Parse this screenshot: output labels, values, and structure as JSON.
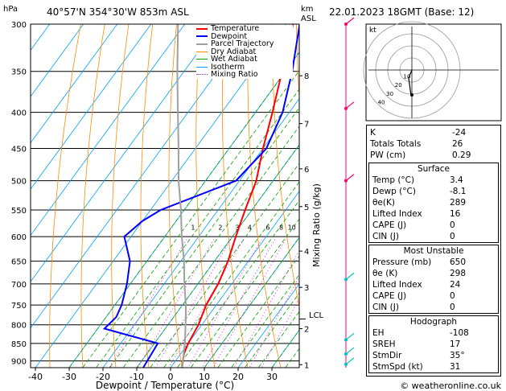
{
  "header": {
    "hpa_unit": "hPa",
    "location": "40°57'N  354°30'W  853m  ASL",
    "km_unit": "km",
    "asl_unit": "ASL",
    "datetime": "22.01.2023  18GMT  (Base: 12)"
  },
  "legend": [
    "Temperature",
    "Dewpoint",
    "Parcel Trajectory",
    "Dry Adiabat",
    "Wet Adiabat",
    "Isotherm",
    "Mixing Ratio"
  ],
  "colors": {
    "temperature": "#ff0000",
    "dewpoint": "#0000ff",
    "parcel": "#a0a0a0",
    "dry_adiabat": "#ff8c00",
    "wet_adiabat": "#00a000",
    "isotherm": "#00a0ff",
    "mixing_ratio": "#ff00ff",
    "wind": "#ff0066",
    "wind_low": "#00c0c0"
  },
  "chart_data": {
    "type": "line",
    "title": "",
    "xlabel": "Dewpoint / Temperature (°C)",
    "ylabel": "hPa",
    "y2label": "Mixing Ratio (g/kg)",
    "x_ticks": [
      "-40",
      "-30",
      "-20",
      "-10",
      "0",
      "10",
      "20",
      "30"
    ],
    "p_levels": [
      "300",
      "350",
      "400",
      "450",
      "500",
      "550",
      "600",
      "650",
      "700",
      "750",
      "800",
      "850",
      "900"
    ],
    "km_ticks": [
      "1",
      "2",
      "3",
      "4",
      "5",
      "6",
      "7",
      "8"
    ],
    "km_pressures": [
      911,
      810,
      708,
      629,
      544,
      481,
      415,
      355
    ],
    "lcl_label": "LCL",
    "lcl_pressure": 785,
    "mixing_ratio_labels": [
      "1",
      "2",
      "3",
      "4",
      "6",
      "8",
      "10",
      "15",
      "20",
      "25"
    ],
    "mixing_ratio_label_pressure": 590,
    "series": [
      {
        "name": "Temperature",
        "points": [
          [
            3.4,
            920
          ],
          [
            1,
            880
          ],
          [
            0,
            850
          ],
          [
            -1,
            800
          ],
          [
            -3,
            750
          ],
          [
            -4,
            700
          ],
          [
            -6,
            650
          ],
          [
            -9,
            600
          ],
          [
            -12,
            550
          ],
          [
            -15,
            500
          ],
          [
            -20,
            450
          ],
          [
            -25,
            400
          ],
          [
            -31,
            350
          ],
          [
            -38,
            300
          ]
        ]
      },
      {
        "name": "Dewpoint",
        "points": [
          [
            -8.1,
            920
          ],
          [
            -9,
            850
          ],
          [
            -28,
            810
          ],
          [
            -27,
            780
          ],
          [
            -28,
            750
          ],
          [
            -31,
            700
          ],
          [
            -35,
            650
          ],
          [
            -42,
            600
          ],
          [
            -40,
            570
          ],
          [
            -37,
            550
          ],
          [
            -21,
            500
          ],
          [
            -19,
            450
          ],
          [
            -22,
            400
          ],
          [
            -28,
            350
          ],
          [
            -36,
            300
          ]
        ]
      },
      {
        "name": "Parcel Trajectory",
        "points": [
          [
            3.4,
            920
          ],
          [
            -1,
            850
          ],
          [
            -6,
            785
          ],
          [
            -9,
            750
          ],
          [
            -14,
            700
          ],
          [
            -19,
            650
          ],
          [
            -25,
            600
          ],
          [
            -31,
            550
          ],
          [
            -38,
            500
          ],
          [
            -45,
            450
          ],
          [
            -53,
            400
          ],
          [
            -62,
            350
          ],
          [
            -72,
            300
          ]
        ]
      }
    ]
  },
  "hodograph": {
    "unit": "kt",
    "ring_labels": [
      "10",
      "20",
      "30",
      "40"
    ]
  },
  "indices": {
    "k_label": "K",
    "k": "-24",
    "tt_label": "Totals Totals",
    "tt": "26",
    "pw_label": "PW (cm)",
    "pw": "0.29",
    "surface": {
      "title": "Surface",
      "temp_label": "Temp (°C)",
      "temp": "3.4",
      "dewp_label": "Dewp (°C)",
      "dewp": "-8.1",
      "theta_label": "θe(K)",
      "theta": "289",
      "li_label": "Lifted Index",
      "li": "16",
      "cape_label": "CAPE (J)",
      "cape": "0",
      "cin_label": "CIN (J)",
      "cin": "0"
    },
    "most_unstable": {
      "title": "Most Unstable",
      "pressure_label": "Pressure (mb)",
      "pressure": "650",
      "theta_label": "θe (K)",
      "theta": "298",
      "li_label": "Lifted Index",
      "li": "24",
      "cape_label": "CAPE (J)",
      "cape": "0",
      "cin_label": "CIN (J)",
      "cin": "0"
    },
    "hodograph_stats": {
      "title": "Hodograph",
      "eh_label": "EH",
      "eh": "-108",
      "sreh_label": "SREH",
      "sreh": "17",
      "stmdir_label": "StmDir",
      "stmdir": "35°",
      "stmspd_label": "StmSpd (kt)",
      "stmspd": "31"
    }
  },
  "footer": {
    "copyright": "© weatheronline.co.uk"
  }
}
